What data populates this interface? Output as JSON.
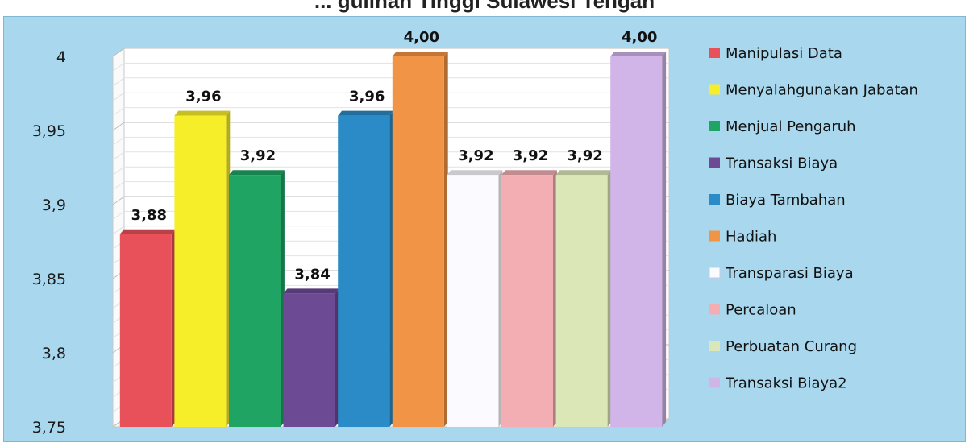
{
  "page": {
    "title": "... gulinan   Tinggi Sulawesi Tengah"
  },
  "chart_data": {
    "type": "bar",
    "title": "",
    "xlabel": "",
    "ylabel": "",
    "ylim": [
      3.75,
      4.0
    ],
    "yticks": [
      "3,75",
      "3,8",
      "3,85",
      "3,9",
      "3,95",
      "4"
    ],
    "ytick_values": [
      3.75,
      3.8,
      3.85,
      3.9,
      3.95,
      4.0
    ],
    "grid": true,
    "legend_position": "right",
    "categories": [
      "Manipulasi Data",
      "Menyalahgunakan Jabatan",
      "Menjual Pengaruh",
      "Transaksi Biaya",
      "Biaya Tambahan",
      "Hadiah",
      "Transparasi Biaya",
      "Percaloan",
      "Perbuatan Curang",
      "Transaksi Biaya2"
    ],
    "values": [
      3.88,
      3.96,
      3.92,
      3.84,
      3.96,
      4.0,
      3.92,
      3.92,
      3.92,
      4.0
    ],
    "data_labels": [
      "3,88",
      "3,96",
      "3,92",
      "3,84",
      "3,96",
      "4,00",
      "3,92",
      "3,92",
      "3,92",
      "4,00"
    ],
    "colors": [
      "#e8515a",
      "#f7ee2a",
      "#1fa463",
      "#6c4a94",
      "#2b8bc6",
      "#f29446",
      "#fbfbff",
      "#f2aeb3",
      "#dbe7b7",
      "#d1b5e8"
    ]
  }
}
